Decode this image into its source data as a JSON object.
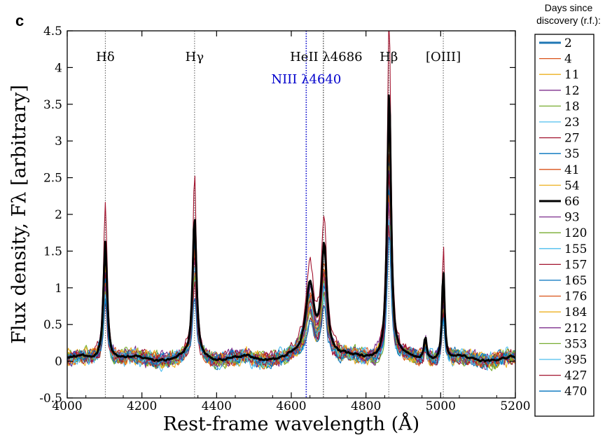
{
  "panel_label": "c",
  "colors": {
    "axes": "#000000",
    "marker_line": "#555555",
    "niii_color": "#0000cc"
  },
  "chart_data": {
    "type": "line",
    "xlabel": "Rest-frame wavelength (Å)",
    "ylabel": "Flux density, Fλ [arbitrary]",
    "xlim": [
      4000,
      5200
    ],
    "ylim": [
      -0.5,
      4.5
    ],
    "x_ticks": [
      "4000",
      "4200",
      "4400",
      "4600",
      "4800",
      "5000",
      "5200"
    ],
    "x_tick_values": [
      4000,
      4200,
      4400,
      4600,
      4800,
      5000,
      5200
    ],
    "y_ticks": [
      "-0.5",
      "0",
      "0.5",
      "1",
      "1.5",
      "2",
      "2.5",
      "3",
      "3.5",
      "4",
      "4.5"
    ],
    "y_tick_values": [
      -0.5,
      0,
      0.5,
      1,
      1.5,
      2,
      2.5,
      3,
      3.5,
      4,
      4.5
    ],
    "line_markers": [
      {
        "label": "Hδ",
        "wavelength": 4102,
        "color": "#555555"
      },
      {
        "label": "Hγ",
        "wavelength": 4341,
        "color": "#555555"
      },
      {
        "label": "NIII λ4640",
        "wavelength": 4640,
        "color": "#0000cc"
      },
      {
        "label": "HeII λ4686",
        "wavelength": 4686,
        "color": "#000000"
      },
      {
        "label": "Hβ",
        "wavelength": 4861,
        "color": "#555555"
      },
      {
        "label": "[OIII]",
        "wavelength": 5007,
        "color": "#555555"
      }
    ],
    "legend_title": "Days since discovery (r.f.):",
    "legend_placement": "right, outside",
    "series": [
      {
        "name": "2",
        "color": "#1f77b4",
        "peak_scale": 0.95,
        "noise": 0.17,
        "bold": true
      },
      {
        "name": "4",
        "color": "#d95319",
        "peak_scale": 0.85,
        "noise": 0.18
      },
      {
        "name": "11",
        "color": "#edb120",
        "peak_scale": 0.8,
        "noise": 0.2
      },
      {
        "name": "12",
        "color": "#7e2f8e",
        "peak_scale": 0.9,
        "noise": 0.22
      },
      {
        "name": "18",
        "color": "#77ac30",
        "peak_scale": 0.75,
        "noise": 0.2
      },
      {
        "name": "23",
        "color": "#4dbeee",
        "peak_scale": 0.7,
        "noise": 0.22
      },
      {
        "name": "27",
        "color": "#a2142f",
        "peak_scale": 1.28,
        "noise": 0.16
      },
      {
        "name": "35",
        "color": "#0072bd",
        "peak_scale": 0.8,
        "noise": 0.17
      },
      {
        "name": "41",
        "color": "#d95319",
        "peak_scale": 0.78,
        "noise": 0.16
      },
      {
        "name": "54",
        "color": "#edb120",
        "peak_scale": 0.74,
        "noise": 0.17
      },
      {
        "name": "66",
        "color": "#000000",
        "peak_scale": 1.0,
        "noise": 0.03,
        "bold": true
      },
      {
        "name": "93",
        "color": "#7e2f8e",
        "peak_scale": 0.72,
        "noise": 0.16
      },
      {
        "name": "120",
        "color": "#77ac30",
        "peak_scale": 0.68,
        "noise": 0.18
      },
      {
        "name": "155",
        "color": "#4dbeee",
        "peak_scale": 0.66,
        "noise": 0.17
      },
      {
        "name": "157",
        "color": "#a2142f",
        "peak_scale": 0.7,
        "noise": 0.16
      },
      {
        "name": "165",
        "color": "#0072bd",
        "peak_scale": 0.64,
        "noise": 0.15
      },
      {
        "name": "176",
        "color": "#d95319",
        "peak_scale": 0.62,
        "noise": 0.16
      },
      {
        "name": "184",
        "color": "#edb120",
        "peak_scale": 0.6,
        "noise": 0.17
      },
      {
        "name": "212",
        "color": "#7e2f8e",
        "peak_scale": 0.58,
        "noise": 0.15
      },
      {
        "name": "353",
        "color": "#77ac30",
        "peak_scale": 0.55,
        "noise": 0.16
      },
      {
        "name": "395",
        "color": "#4dbeee",
        "peak_scale": 0.52,
        "noise": 0.15
      },
      {
        "name": "427",
        "color": "#a2142f",
        "peak_scale": 0.5,
        "noise": 0.14
      },
      {
        "name": "470",
        "color": "#0072bd",
        "peak_scale": 0.48,
        "noise": 0.14
      }
    ],
    "reference_spectrum": {
      "series": "66",
      "continuum": 0.03,
      "features": [
        {
          "center": 4102,
          "amp": 1.62,
          "width": 6
        },
        {
          "center": 4341,
          "amp": 1.93,
          "width": 6
        },
        {
          "center": 4650,
          "amp": 1.0,
          "width": 13
        },
        {
          "center": 4688,
          "amp": 1.5,
          "width": 9
        },
        {
          "center": 4862,
          "amp": 3.68,
          "width": 6
        },
        {
          "center": 4959,
          "amp": 0.3,
          "width": 4
        },
        {
          "center": 5007,
          "amp": 1.22,
          "width": 4
        }
      ]
    }
  }
}
